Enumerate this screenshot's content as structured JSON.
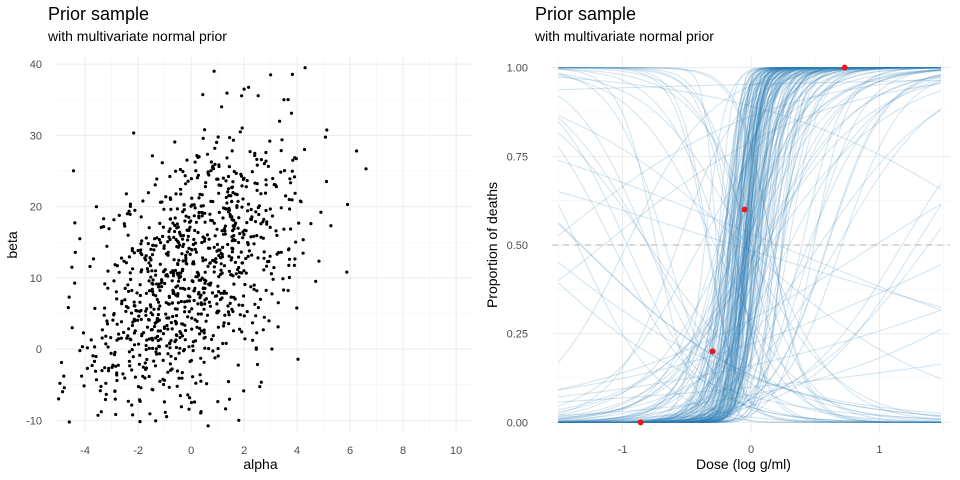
{
  "chart_data": [
    {
      "type": "scatter",
      "title": "Prior sample",
      "subtitle": "with multivariate normal prior",
      "xlabel": "alpha",
      "ylabel": "beta",
      "xlim": [
        -5.1,
        10.6
      ],
      "ylim": [
        -11.5,
        41.0
      ],
      "xticks": [
        -4,
        -2,
        0,
        2,
        4,
        6,
        8,
        10
      ],
      "yticks": [
        -10,
        0,
        10,
        20,
        30,
        40
      ],
      "grid": true,
      "point_color": "#000000",
      "distribution": {
        "n": 1000,
        "alpha_mean": 0.0,
        "alpha_sd": 2.0,
        "beta_mean": 10.0,
        "beta_sd": 10.0,
        "correlation": 0.5
      },
      "points": [
        {
          "x": 4.3,
          "y": 39.5
        },
        {
          "x": 3.0,
          "y": 38.5
        },
        {
          "x": 6.6,
          "y": 25.3
        },
        {
          "x": 5.9,
          "y": 20.3
        },
        {
          "x": 4.7,
          "y": 9.5
        },
        {
          "x": -5.0,
          "y": -7.0
        },
        {
          "x": -4.2,
          "y": 15.5
        },
        {
          "x": -4.5,
          "y": 11.5
        },
        {
          "x": 1.8,
          "y": -10.0
        },
        {
          "x": -4.6,
          "y": 7.3
        },
        {
          "x": 2.0,
          "y": 36.5
        },
        {
          "x": 3.5,
          "y": 35.0
        }
      ]
    },
    {
      "type": "line",
      "title": "Prior sample",
      "subtitle": "with multivariate normal prior",
      "xlabel": "Dose (log g/ml)",
      "ylabel": "Proportion of deaths",
      "xlim": [
        -1.55,
        1.55
      ],
      "ylim": [
        -0.03,
        1.03
      ],
      "xticks": [
        -1,
        0,
        1
      ],
      "yticks": [
        0.0,
        0.25,
        0.5,
        0.75,
        1.0
      ],
      "ytick_labels": [
        "0.00",
        "0.25",
        "0.50",
        "0.75",
        "1.00"
      ],
      "grid": true,
      "reference_line": {
        "y": 0.5,
        "style": "dashed",
        "color": "#b3b3b3"
      },
      "curve_color": "#2c7bb6",
      "curve_count": 200,
      "curve_function": "logistic(alpha + beta * dose)",
      "observed_points": {
        "color": "#e41a1c",
        "x": [
          -0.86,
          -0.3,
          -0.05,
          0.73
        ],
        "y": [
          0.0,
          0.2,
          0.6,
          1.0
        ]
      }
    }
  ]
}
